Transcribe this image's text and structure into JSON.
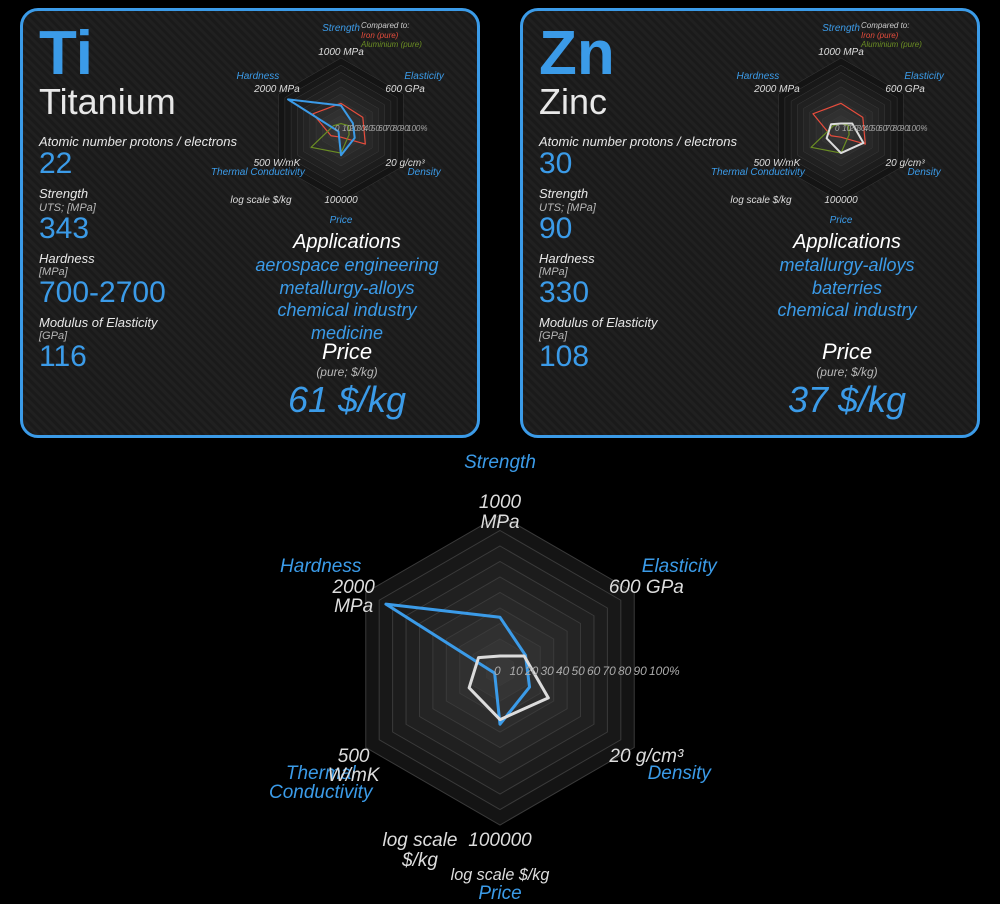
{
  "colors": {
    "accent": "#3b9be8",
    "card_border": "#3b9be8",
    "card_bg1": "#1a1a1a",
    "card_bg2": "#202020",
    "text": "#e8e8e8",
    "grid": "#3a3a3a",
    "hex_fill": "#2a2a2a",
    "titanium_line": "#3b9be8",
    "zinc_line": "#dcdcdc",
    "iron_line": "#e74c3c",
    "al_line": "#6b8e23"
  },
  "radar": {
    "axes": [
      "Strength",
      "Elasticity",
      "Density",
      "Price",
      "Thermal Conductivity",
      "Hardness"
    ],
    "axis_max_labels": [
      "1000 MPa",
      "600 GPa",
      "20 g/cm³",
      "100000",
      "500 W/mK",
      "2000 MPa"
    ],
    "price_sub": "log scale $/kg",
    "rings": 10,
    "scale_labels": [
      "0",
      "10",
      "20",
      "30",
      "40",
      "50",
      "60",
      "70",
      "80",
      "90",
      "100%"
    ],
    "titanium_pct": [
      34,
      19,
      22,
      35,
      4,
      85
    ],
    "zinc_pct": [
      9,
      18,
      36,
      32,
      23,
      16
    ],
    "iron_pct": [
      37,
      35,
      39,
      10,
      16,
      45
    ],
    "al_pct": [
      9,
      12,
      13,
      32,
      48,
      12
    ],
    "legend": {
      "title": "Compared to:",
      "iron": "Iron (pure)",
      "al": "Aluminium (pure)"
    }
  },
  "elements": [
    {
      "symbol": "Ti",
      "name": "Titanium",
      "props": {
        "atomic": {
          "label": "Atomic number protons / electrons",
          "value": "22"
        },
        "strength": {
          "label": "Strength",
          "sub": "UTS; [MPa]",
          "value": "343"
        },
        "hardness": {
          "label": "Hardness",
          "sub": "[MPa]",
          "value": "700-2700"
        },
        "modulus": {
          "label": "Modulus of Elasticity",
          "sub": "[GPa]",
          "value": "116"
        }
      },
      "applications_title": "Applications",
      "applications": [
        "aerospace engineering",
        "metallurgy-alloys",
        "chemical industry",
        "medicine"
      ],
      "price": {
        "title": "Price",
        "sub": "(pure; $/kg)",
        "value": "61 $/kg"
      }
    },
    {
      "symbol": "Zn",
      "name": "Zinc",
      "props": {
        "atomic": {
          "label": "Atomic number protons / electrons",
          "value": "30"
        },
        "strength": {
          "label": "Strength",
          "sub": "UTS; [MPa]",
          "value": "90"
        },
        "hardness": {
          "label": "Hardness",
          "sub": "[MPa]",
          "value": "330"
        },
        "modulus": {
          "label": "Modulus of Elasticity",
          "sub": "[GPa]",
          "value": "108"
        }
      },
      "applications_title": "Applications",
      "applications": [
        "metallurgy-alloys",
        "baterries",
        "chemical industry"
      ],
      "price": {
        "title": "Price",
        "sub": "(pure; $/kg)",
        "value": "37 $/kg"
      }
    }
  ],
  "big_chart": {
    "series": [
      {
        "name": "Titanium",
        "key": "titanium_pct",
        "color": "#3b9be8",
        "width": 3
      },
      {
        "name": "Zinc",
        "key": "zinc_pct",
        "color": "#dcdcdc",
        "width": 3
      }
    ]
  }
}
